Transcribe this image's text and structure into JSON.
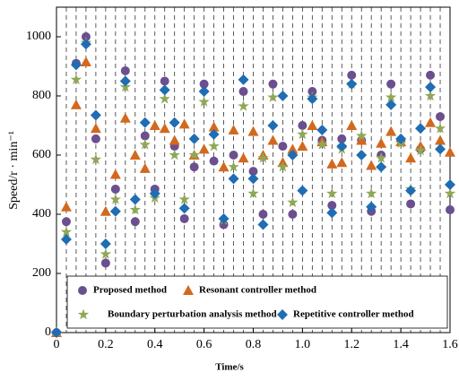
{
  "chart_data": {
    "type": "scatter",
    "x_label": "Time/s",
    "y_label": "Speed/r · min⁻¹",
    "x": [
      0,
      0.04,
      0.08,
      0.12,
      0.16,
      0.2,
      0.24,
      0.28,
      0.32,
      0.36,
      0.4,
      0.44,
      0.48,
      0.52,
      0.56,
      0.6,
      0.64,
      0.68,
      0.72,
      0.76,
      0.8,
      0.84,
      0.88,
      0.92,
      0.96,
      1.0,
      1.04,
      1.08,
      1.12,
      1.16,
      1.2,
      1.24,
      1.28,
      1.32,
      1.36,
      1.4,
      1.44,
      1.48,
      1.52,
      1.56,
      1.6
    ],
    "series": [
      {
        "name": "Proposed method",
        "color": "#6b4f8e",
        "marker": "circle",
        "values": [
          0,
          375,
          910,
          1000,
          655,
          235,
          485,
          885,
          375,
          665,
          485,
          850,
          630,
          385,
          560,
          840,
          580,
          365,
          600,
          815,
          545,
          400,
          840,
          630,
          400,
          700,
          815,
          650,
          430,
          655,
          870,
          650,
          410,
          600,
          840,
          650,
          435,
          620,
          870,
          730,
          415
        ]
      },
      {
        "name": "Resonant controller method",
        "color": "#d2691e",
        "marker": "triangle",
        "values": [
          0,
          425,
          770,
          915,
          690,
          410,
          535,
          725,
          600,
          555,
          700,
          690,
          650,
          705,
          600,
          620,
          695,
          560,
          685,
          590,
          680,
          600,
          650,
          575,
          620,
          630,
          700,
          645,
          570,
          575,
          700,
          650,
          565,
          640,
          680,
          645,
          590,
          630,
          710,
          650,
          610
        ]
      },
      {
        "name": "Boundary perturbation analysis method",
        "color": "#8fa856",
        "marker": "star",
        "values": [
          0,
          340,
          855,
          980,
          585,
          265,
          450,
          830,
          415,
          635,
          455,
          790,
          600,
          450,
          600,
          780,
          630,
          380,
          560,
          765,
          470,
          590,
          795,
          560,
          440,
          670,
          795,
          635,
          470,
          620,
          840,
          665,
          470,
          590,
          795,
          640,
          485,
          615,
          800,
          690,
          470
        ]
      },
      {
        "name": "Repetitive controller method",
        "color": "#1f6db3",
        "marker": "diamond",
        "values": [
          0,
          315,
          905,
          975,
          735,
          300,
          410,
          850,
          450,
          710,
          470,
          820,
          710,
          420,
          655,
          815,
          670,
          385,
          520,
          855,
          520,
          365,
          700,
          800,
          600,
          480,
          790,
          685,
          405,
          630,
          840,
          600,
          425,
          560,
          770,
          655,
          480,
          690,
          830,
          620,
          500
        ]
      }
    ],
    "xlim": [
      0,
      1.6
    ],
    "ylim": [
      0,
      1100
    ],
    "xticks": [
      0,
      0.2,
      0.4,
      0.6,
      0.8,
      {
        "value": 1,
        "label": "1.0"
      },
      1.2,
      1.4,
      1.6
    ],
    "yticks": [
      0,
      200,
      400,
      600,
      800,
      1000
    ],
    "grid": "x-dashed-at-samples",
    "legend": "bottom"
  }
}
